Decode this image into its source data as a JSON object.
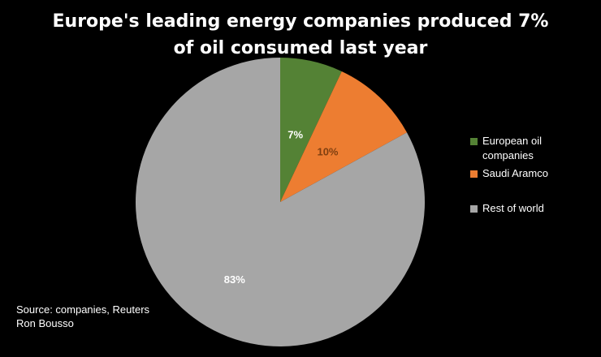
{
  "chart_data": {
    "type": "pie",
    "title": "Europe's leading energy companies produced 7% of oil consumed last year",
    "title_lines": [
      "Europe's leading energy companies produced 7%",
      "of oil consumed last year"
    ],
    "slices": [
      {
        "name": "European oil companies",
        "legend_lines": [
          "European oil",
          "companies"
        ],
        "value": 7,
        "label": "7%",
        "color": "#548235",
        "label_color": "#ffffff"
      },
      {
        "name": "Saudi Aramco",
        "legend_lines": [
          "Saudi Aramco"
        ],
        "value": 10,
        "label": "10%",
        "color": "#ed7d31",
        "label_color": "#7f3f10"
      },
      {
        "name": "Rest of world",
        "legend_lines": [
          "Rest of world"
        ],
        "value": 83,
        "label": "83%",
        "color": "#a6a6a6",
        "label_color": "#ffffff"
      }
    ],
    "legend_position": "right"
  },
  "source": {
    "line1": "Source: companies, Reuters",
    "line2": "Ron Bousso"
  }
}
